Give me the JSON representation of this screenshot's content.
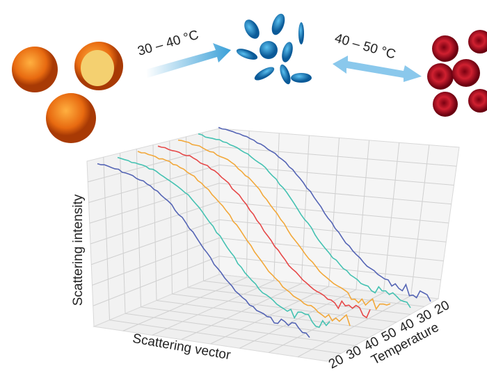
{
  "arrows": [
    {
      "label": "30 – 40 °C"
    },
    {
      "label": "40 – 50 °C"
    }
  ],
  "plot": {
    "y_label": "Scattering intensity",
    "x_label": "Scattering vector",
    "depth_label": "Temperature",
    "depth_ticks": [
      "20",
      "30",
      "40",
      "50",
      "40",
      "30",
      "20"
    ]
  }
}
